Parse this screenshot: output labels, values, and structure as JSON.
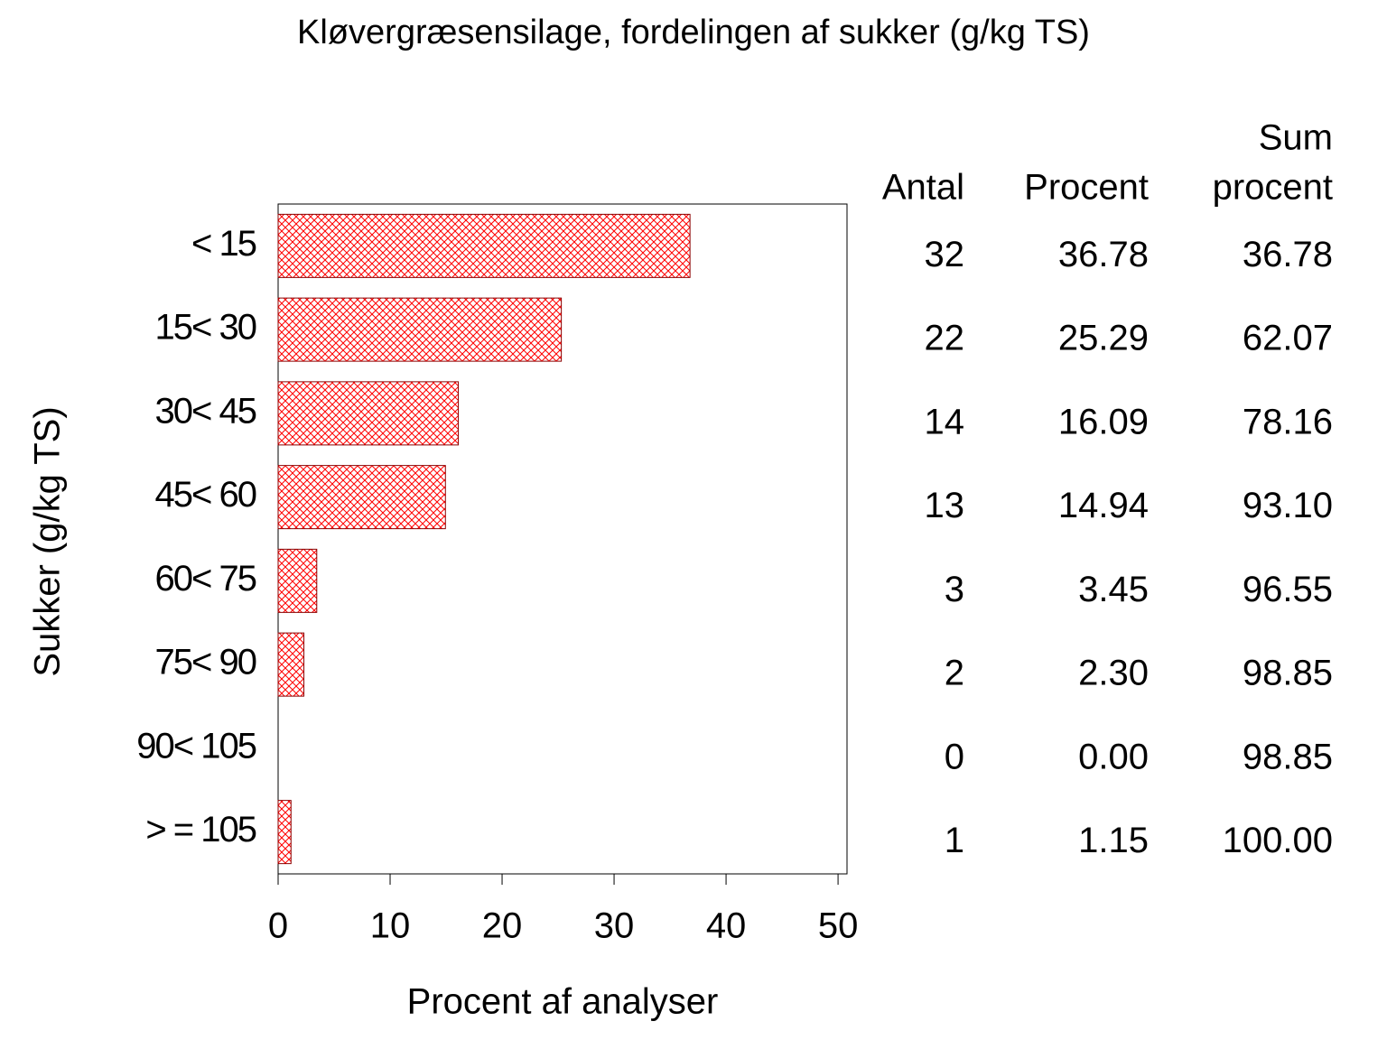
{
  "chart_data": {
    "type": "bar",
    "orientation": "horizontal",
    "title": "Kløvergræsensilage, fordelingen af sukker (g/kg TS)",
    "x_label": "Procent af analyser",
    "y_label": "Sukker (g/kg TS)",
    "categories": [
      "< 15",
      "15< 30",
      "30< 45",
      "45< 60",
      "60< 75",
      "75< 90",
      "90< 105",
      "> = 105"
    ],
    "values": [
      36.78,
      25.29,
      16.09,
      14.94,
      3.45,
      2.3,
      0,
      1.15
    ],
    "value_labels": [
      "36.78",
      "25.29",
      "16.09",
      "14.94",
      "3.45",
      "2.30",
      "0.00",
      "1.15"
    ],
    "color": "#ff0000",
    "xlim": [
      0,
      50.8
    ],
    "xticks": [
      0,
      10,
      20,
      30,
      40,
      50
    ],
    "table": {
      "count_header": "Antal",
      "counts": [
        32,
        22,
        14,
        13,
        3,
        2,
        0,
        1
      ],
      "percent_header": "Procent",
      "cumulative_header": [
        "Sum",
        "procent"
      ],
      "cumulative": [
        36.78,
        62.07,
        78.16,
        93.1,
        96.55,
        98.85,
        98.85,
        100
      ],
      "cumulative_labels": [
        "36.78",
        "62.07",
        "78.16",
        "93.10",
        "96.55",
        "98.85",
        "98.85",
        "100.00"
      ]
    }
  }
}
